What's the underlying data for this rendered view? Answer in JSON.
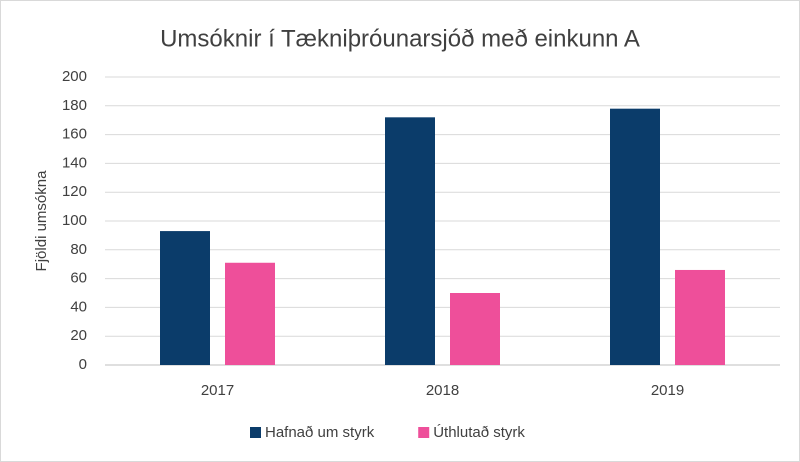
{
  "chart_data": {
    "type": "bar",
    "title": "Umsóknir í Tækniþróunarsjóð með einkunn A",
    "y_label": "Fjöldi umsókna",
    "categories": [
      "2017",
      "2018",
      "2019"
    ],
    "series": [
      {
        "name": "Hafnað um styrk",
        "color": "#0b3c6a",
        "values": [
          93,
          172,
          178
        ]
      },
      {
        "name": "Úthlutað styrk",
        "color": "#ee4f9a",
        "values": [
          71,
          50,
          66
        ]
      }
    ],
    "ylim": [
      0,
      200
    ],
    "yticks": [
      0,
      20,
      40,
      60,
      80,
      100,
      120,
      140,
      160,
      180,
      200
    ],
    "grid": true,
    "legend": "bottom"
  }
}
